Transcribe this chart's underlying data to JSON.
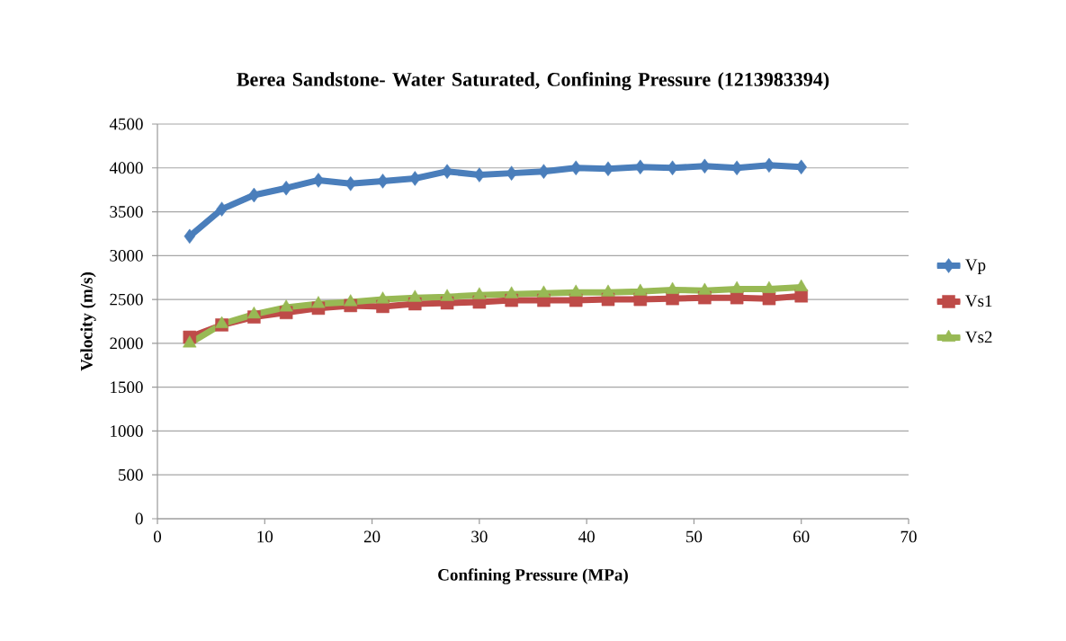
{
  "chart_data": {
    "type": "line",
    "title": "Berea Sandstone- Water Saturated, Confining Pressure (1213983394)",
    "xlabel": "Confining Pressure (MPa)",
    "ylabel": "Velocity (m/s)",
    "x": [
      3,
      6,
      9,
      12,
      15,
      18,
      21,
      24,
      27,
      30,
      33,
      36,
      39,
      42,
      45,
      48,
      51,
      54,
      57,
      60
    ],
    "series": [
      {
        "name": "Vp",
        "color": "#4a7ebb",
        "marker": "diamond",
        "values": [
          3220,
          3530,
          3690,
          3770,
          3860,
          3820,
          3850,
          3880,
          3960,
          3920,
          3940,
          3960,
          4000,
          3990,
          4010,
          4000,
          4020,
          4000,
          4030,
          4010
        ]
      },
      {
        "name": "Vs1",
        "color": "#be4b48",
        "marker": "square",
        "values": [
          2070,
          2210,
          2300,
          2350,
          2400,
          2430,
          2420,
          2450,
          2460,
          2470,
          2490,
          2490,
          2490,
          2500,
          2500,
          2510,
          2520,
          2520,
          2510,
          2540
        ]
      },
      {
        "name": "Vs2",
        "color": "#98b954",
        "marker": "triangle",
        "values": [
          2000,
          2220,
          2330,
          2410,
          2450,
          2470,
          2500,
          2520,
          2530,
          2550,
          2560,
          2570,
          2580,
          2580,
          2590,
          2610,
          2600,
          2620,
          2620,
          2640
        ]
      }
    ],
    "xlim": [
      0,
      70
    ],
    "xticks": [
      0,
      10,
      20,
      30,
      40,
      50,
      60,
      70
    ],
    "ylim": [
      0,
      4500
    ],
    "yticks": [
      0,
      500,
      1000,
      1500,
      2000,
      2500,
      3000,
      3500,
      4000,
      4500
    ],
    "grid": "y",
    "legend": "right",
    "line_style": "solid"
  }
}
